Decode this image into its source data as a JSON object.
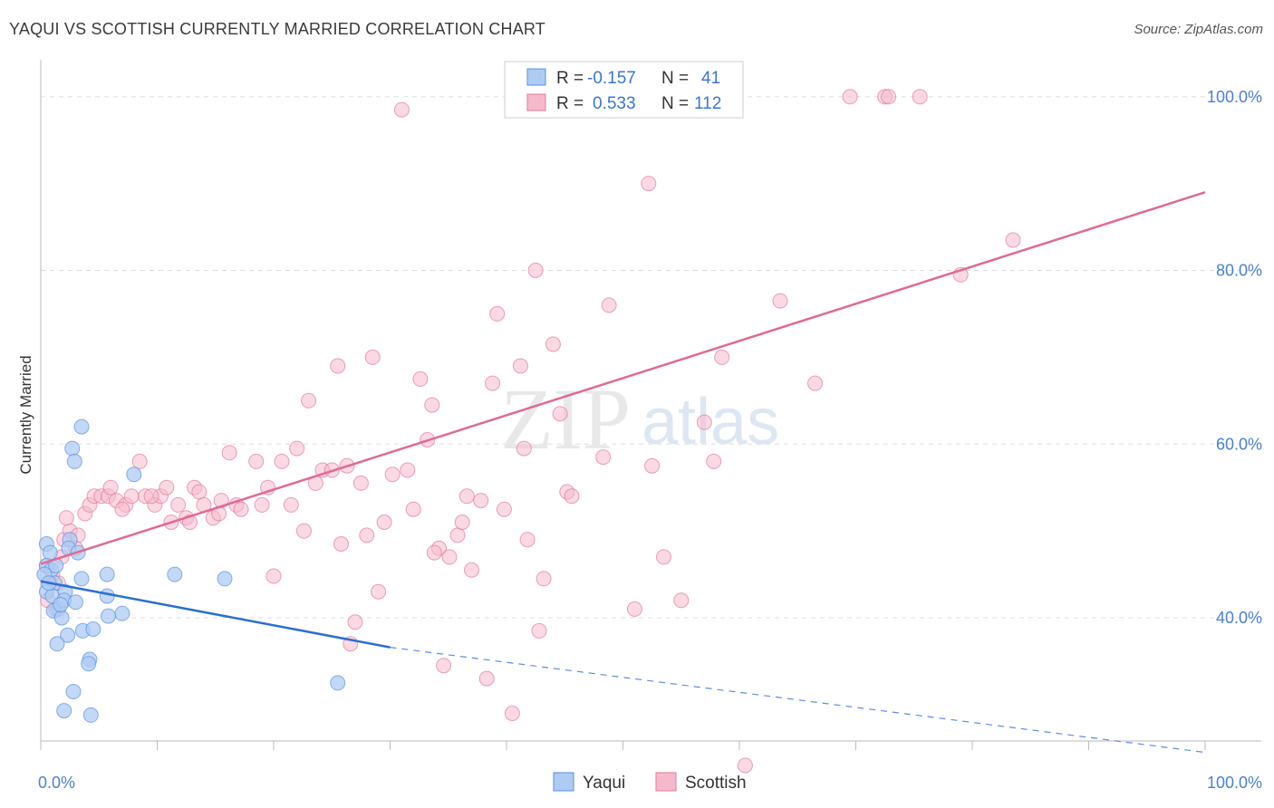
{
  "title": "YAQUI VS SCOTTISH CURRENTLY MARRIED CORRELATION CHART",
  "source": "Source: ZipAtlas.com",
  "watermark": {
    "zip": "ZIP",
    "atlas": "atlas"
  },
  "colors": {
    "yaqui": "#5b8ee0",
    "yaqui_fill": "#aecbf3",
    "scottish": "#e07a9c",
    "scottish_fill": "#f6b9cc",
    "axis_label": "#4a7fd1",
    "grid": "#dddddd"
  },
  "legend": {
    "rows": [
      {
        "r_label": "R =",
        "r_value": "-0.157",
        "n_label": "N =",
        "n_value": "41"
      },
      {
        "r_label": "R =",
        "r_value": "0.533",
        "n_label": "N =",
        "n_value": "112"
      }
    ]
  },
  "chart_data": {
    "type": "scatter",
    "title": "YAQUI VS SCOTTISH CURRENTLY MARRIED CORRELATION CHART",
    "xlabel": "",
    "ylabel": "Currently Married",
    "xlim": [
      0,
      100
    ],
    "ylim": [
      23,
      103
    ],
    "x_tick_labels": [
      "0.0%",
      "100.0%"
    ],
    "y_ticks": [
      40,
      60,
      80,
      100
    ],
    "y_tick_labels": [
      "40.0%",
      "60.0%",
      "80.0%",
      "100.0%"
    ],
    "legend_position": "bottom-center",
    "series": [
      {
        "name": "Yaqui",
        "r": -0.157,
        "n": 41,
        "trend": {
          "x0": 0,
          "y0": 44.2,
          "x1": 30,
          "y1": 36.6,
          "dashed_to_x": 100,
          "dashed_to_y": 24.5
        },
        "points": [
          [
            0.5,
            48.5
          ],
          [
            0.8,
            47.5
          ],
          [
            0.5,
            46
          ],
          [
            0.9,
            45.5
          ],
          [
            1.2,
            44
          ],
          [
            0.5,
            43
          ],
          [
            1,
            42.5
          ],
          [
            1.5,
            41
          ],
          [
            1.1,
            40.8
          ],
          [
            1.8,
            40
          ],
          [
            0.3,
            45
          ],
          [
            0.7,
            44
          ],
          [
            1.3,
            46
          ],
          [
            2.1,
            43
          ],
          [
            2.5,
            49
          ],
          [
            2.4,
            48
          ],
          [
            3.2,
            47.5
          ],
          [
            3.5,
            44.5
          ],
          [
            2,
            42
          ],
          [
            1.7,
            41.5
          ],
          [
            3,
            41.8
          ],
          [
            2.3,
            38
          ],
          [
            3.6,
            38.5
          ],
          [
            4.5,
            38.7
          ],
          [
            1.4,
            37
          ],
          [
            4.2,
            35.2
          ],
          [
            4.1,
            34.7
          ],
          [
            2.8,
            31.5
          ],
          [
            2,
            29.3
          ],
          [
            4.3,
            28.8
          ],
          [
            3.5,
            62
          ],
          [
            2.7,
            59.5
          ],
          [
            2.9,
            58
          ],
          [
            8,
            56.5
          ],
          [
            5.7,
            45
          ],
          [
            11.5,
            45
          ],
          [
            15.8,
            44.5
          ],
          [
            5.7,
            42.5
          ],
          [
            7,
            40.5
          ],
          [
            5.8,
            40.2
          ],
          [
            25.5,
            32.5
          ]
        ]
      },
      {
        "name": "Scottish",
        "r": 0.533,
        "n": 112,
        "trend": {
          "x0": 0,
          "y0": 46.2,
          "x1": 100,
          "y1": 89
        },
        "points": [
          [
            0.5,
            46
          ],
          [
            1,
            45
          ],
          [
            1.5,
            44
          ],
          [
            2,
            49
          ],
          [
            2.5,
            50
          ],
          [
            3,
            48
          ],
          [
            3.8,
            52
          ],
          [
            4.2,
            53
          ],
          [
            4.6,
            54
          ],
          [
            5.2,
            54
          ],
          [
            5.8,
            54
          ],
          [
            6.5,
            53.5
          ],
          [
            7.3,
            53
          ],
          [
            7.8,
            54
          ],
          [
            8.5,
            58
          ],
          [
            9,
            54
          ],
          [
            9.8,
            53
          ],
          [
            10.3,
            54
          ],
          [
            10.8,
            55
          ],
          [
            11.2,
            51
          ],
          [
            11.8,
            53
          ],
          [
            12.5,
            51.5
          ],
          [
            12.8,
            51
          ],
          [
            13.2,
            55
          ],
          [
            13.6,
            54.5
          ],
          [
            14,
            53
          ],
          [
            14.8,
            51.5
          ],
          [
            15.3,
            52
          ],
          [
            16.2,
            59
          ],
          [
            16.8,
            53
          ],
          [
            17.2,
            52.5
          ],
          [
            18.5,
            58
          ],
          [
            19,
            53
          ],
          [
            19.5,
            55
          ],
          [
            20,
            44.8
          ],
          [
            20.7,
            58
          ],
          [
            21.5,
            53
          ],
          [
            22,
            59.5
          ],
          [
            22.6,
            50
          ],
          [
            23,
            65
          ],
          [
            23.6,
            55.5
          ],
          [
            24.2,
            57
          ],
          [
            25,
            57
          ],
          [
            25.5,
            69
          ],
          [
            25.8,
            48.5
          ],
          [
            26.3,
            57.5
          ],
          [
            27,
            39.5
          ],
          [
            27.5,
            55.5
          ],
          [
            28,
            49.5
          ],
          [
            28.5,
            70
          ],
          [
            29,
            43
          ],
          [
            29.5,
            51
          ],
          [
            30.2,
            56.5
          ],
          [
            31,
            98.5
          ],
          [
            31.5,
            57
          ],
          [
            32,
            52.5
          ],
          [
            32.6,
            67.5
          ],
          [
            33.2,
            60.5
          ],
          [
            33.6,
            64.5
          ],
          [
            34.2,
            48
          ],
          [
            34.6,
            34.5
          ],
          [
            35.1,
            47
          ],
          [
            35.8,
            49.5
          ],
          [
            36.2,
            51
          ],
          [
            36.6,
            54
          ],
          [
            37,
            45.5
          ],
          [
            37.8,
            53.5
          ],
          [
            38.3,
            33
          ],
          [
            38.8,
            67
          ],
          [
            39.2,
            75
          ],
          [
            39.8,
            52.5
          ],
          [
            40.5,
            29
          ],
          [
            41.2,
            69
          ],
          [
            41.5,
            59.5
          ],
          [
            41.8,
            49
          ],
          [
            42.5,
            80
          ],
          [
            42.8,
            38.5
          ],
          [
            43.2,
            44.5
          ],
          [
            44,
            71.5
          ],
          [
            44.6,
            63.5
          ],
          [
            45.2,
            54.5
          ],
          [
            45.6,
            54
          ],
          [
            48.3,
            58.5
          ],
          [
            48.8,
            76
          ],
          [
            51,
            41
          ],
          [
            52.2,
            90
          ],
          [
            52.5,
            57.5
          ],
          [
            53.5,
            47
          ],
          [
            55,
            42
          ],
          [
            57,
            62.5
          ],
          [
            57.8,
            58
          ],
          [
            58.5,
            70
          ],
          [
            60.5,
            23
          ],
          [
            63.5,
            76.5
          ],
          [
            66.5,
            67
          ],
          [
            69.5,
            100
          ],
          [
            72.5,
            100
          ],
          [
            72.8,
            100
          ],
          [
            75.5,
            100
          ],
          [
            79,
            79.5
          ],
          [
            83.5,
            83.5
          ],
          [
            3.2,
            49.5
          ],
          [
            2.2,
            51.5
          ],
          [
            1.3,
            41
          ],
          [
            0.6,
            42
          ],
          [
            1.8,
            47
          ],
          [
            9.5,
            54
          ],
          [
            6,
            55
          ],
          [
            7,
            52.5
          ],
          [
            26.6,
            37
          ],
          [
            15.5,
            53.5
          ],
          [
            33.8,
            47.5
          ]
        ]
      }
    ]
  },
  "bottom_legend": [
    {
      "label": "Yaqui"
    },
    {
      "label": "Scottish"
    }
  ]
}
